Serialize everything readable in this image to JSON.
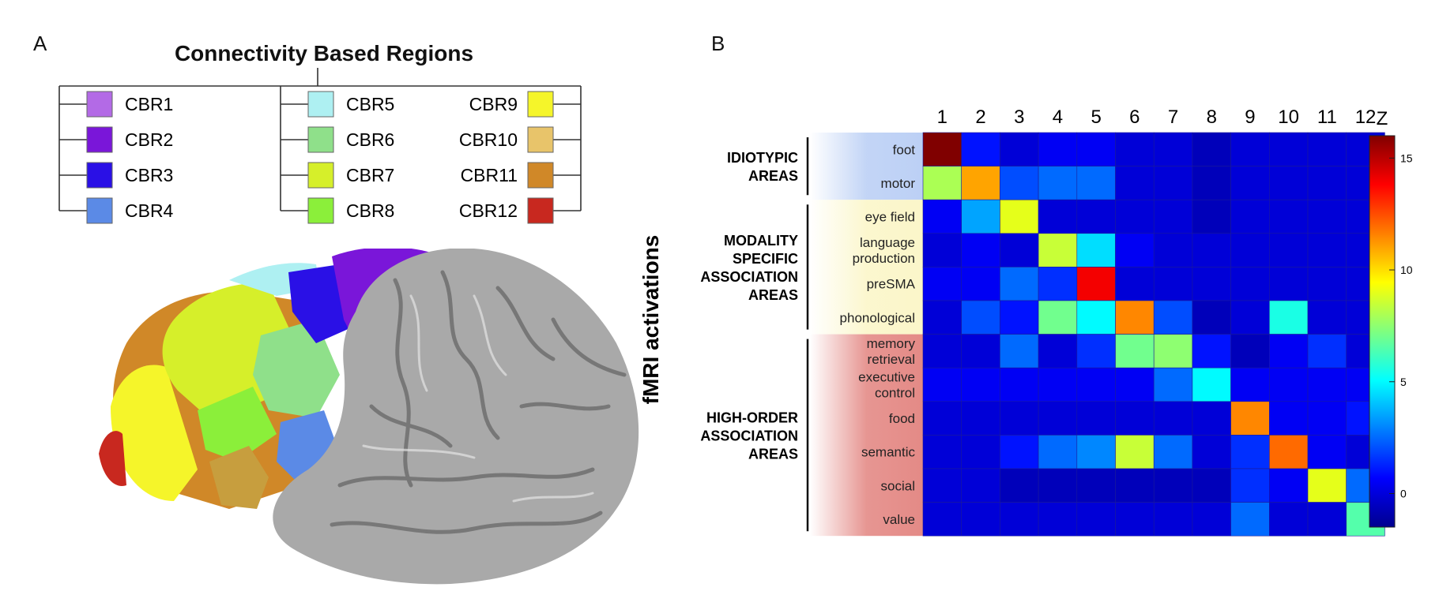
{
  "panel_a": {
    "letter": "A",
    "legend_title": "Connectivity Based Regions",
    "regions": [
      {
        "label": "CBR1",
        "color": "#b36ae6"
      },
      {
        "label": "CBR2",
        "color": "#7a16d9"
      },
      {
        "label": "CBR3",
        "color": "#2a10e6"
      },
      {
        "label": "CBR4",
        "color": "#5b8ae6"
      },
      {
        "label": "CBR5",
        "color": "#aef0f2"
      },
      {
        "label": "CBR6",
        "color": "#8fe08a"
      },
      {
        "label": "CBR7",
        "color": "#d6ef2a"
      },
      {
        "label": "CBR8",
        "color": "#8bef3a"
      },
      {
        "label": "CBR9",
        "color": "#f5f52a"
      },
      {
        "label": "CBR10",
        "color": "#e8c46a"
      },
      {
        "label": "CBR11",
        "color": "#d08828"
      },
      {
        "label": "CBR12",
        "color": "#c8281f"
      }
    ]
  },
  "panel_b": {
    "letter": "B",
    "ylabel": "fMRI activations",
    "colorbar_label": "Z",
    "colorbar_ticks": [
      "15",
      "10",
      "5",
      "0"
    ],
    "groups": [
      {
        "label": "IDIOTYPIC\nAREAS",
        "rows": [
          0,
          1
        ],
        "tint": "#bcd0f5"
      },
      {
        "label": "MODALITY\nSPECIFIC\nASSOCIATION\nAREAS",
        "rows": [
          2,
          3,
          4,
          5
        ],
        "tint": "#fbf6c9"
      },
      {
        "label": "HIGH-ORDER\nASSOCIATION\nAREAS",
        "rows": [
          6,
          7,
          8,
          9,
          10,
          11
        ],
        "tint": "#e48a86"
      }
    ]
  },
  "chart_data": {
    "type": "heatmap",
    "title": "",
    "xlabel": "",
    "ylabel": "fMRI activations",
    "x": [
      "1",
      "2",
      "3",
      "4",
      "5",
      "6",
      "7",
      "8",
      "9",
      "10",
      "11",
      "12"
    ],
    "y": [
      "foot",
      "motor",
      "eye field",
      "language\nproduction",
      "preSMA",
      "phonological",
      "memory\nretrieval",
      "executive\ncontrol",
      "food",
      "semantic",
      "social",
      "value"
    ],
    "values": [
      [
        16,
        1,
        0,
        0.5,
        0.5,
        0,
        0,
        -0.5,
        0,
        0,
        0,
        0
      ],
      [
        8,
        11,
        2,
        2.5,
        2.5,
        0,
        0,
        -0.5,
        0,
        0,
        0,
        0
      ],
      [
        0.5,
        3.5,
        9,
        0,
        0,
        0,
        0,
        -0.5,
        0,
        0,
        0,
        0
      ],
      [
        0,
        0.5,
        0,
        8.5,
        4.5,
        0.5,
        0,
        0,
        0,
        0,
        0,
        0
      ],
      [
        0.5,
        0.5,
        2.5,
        1.5,
        14,
        0,
        0,
        0,
        0,
        0,
        0,
        0
      ],
      [
        0,
        2,
        1,
        7,
        5,
        11.5,
        2,
        -0.5,
        0,
        5.5,
        0,
        0
      ],
      [
        0,
        0,
        2.5,
        0,
        1.5,
        7,
        7.5,
        1,
        -0.5,
        0.5,
        1.5,
        0
      ],
      [
        0.5,
        0.5,
        0.5,
        0.5,
        0.5,
        0.5,
        2.5,
        5,
        0.5,
        0.5,
        0.5,
        0.5
      ],
      [
        0,
        0,
        0,
        0,
        0,
        0,
        0,
        0,
        11.5,
        0.5,
        0.5,
        1
      ],
      [
        0,
        0,
        1,
        2.5,
        3,
        8.5,
        2.5,
        0,
        1.5,
        12,
        0.5,
        0
      ],
      [
        0,
        0,
        -0.5,
        -0.5,
        -0.5,
        -0.5,
        -0.5,
        -0.5,
        1.5,
        0.5,
        9,
        2.5
      ],
      [
        0,
        0,
        0,
        0,
        0,
        0,
        0,
        0,
        2.5,
        0,
        0,
        6.5
      ]
    ],
    "zlim": [
      -1.5,
      16
    ],
    "colorbar": {
      "label": "Z",
      "ticks": [
        15,
        10,
        5,
        0
      ]
    },
    "colormap": "jet"
  }
}
